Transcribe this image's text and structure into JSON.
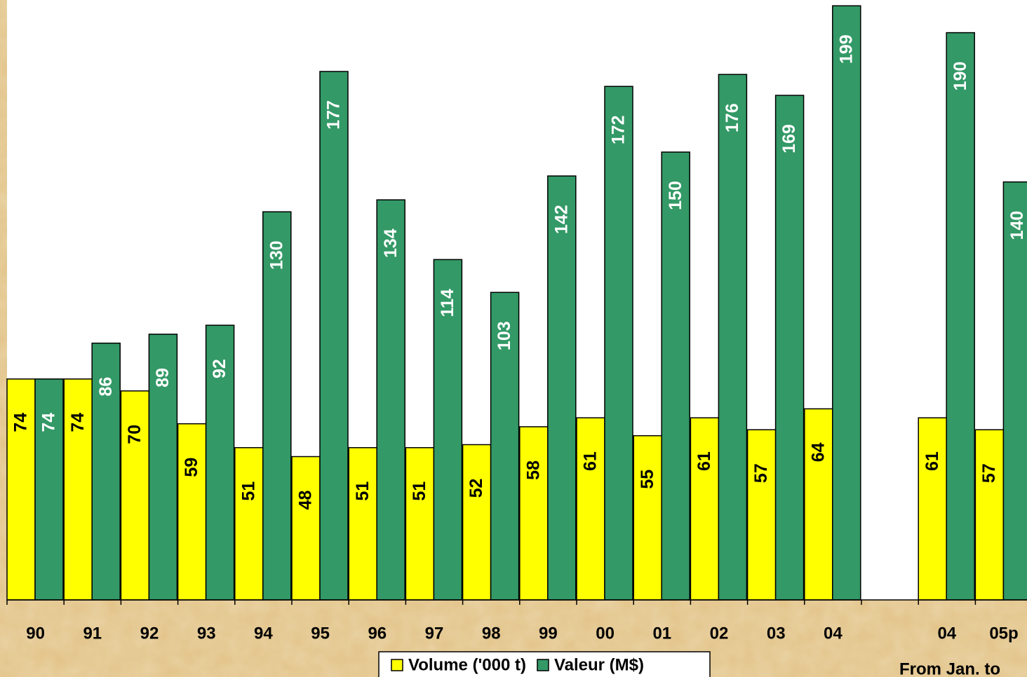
{
  "chart_data": {
    "type": "bar",
    "categories": [
      "90",
      "91",
      "92",
      "93",
      "94",
      "95",
      "96",
      "97",
      "98",
      "99",
      "00",
      "01",
      "02",
      "03",
      "04",
      null,
      "04",
      "05p"
    ],
    "series": [
      {
        "name": "Volume ('000 t)",
        "color": "#ffff00",
        "values": [
          74,
          74,
          70,
          59,
          51,
          48,
          51,
          51,
          52,
          58,
          61,
          55,
          61,
          57,
          64,
          null,
          61,
          57
        ]
      },
      {
        "name": "Valeur (M$)",
        "color": "#339966",
        "values": [
          74,
          86,
          89,
          92,
          130,
          177,
          134,
          114,
          103,
          142,
          172,
          150,
          176,
          169,
          199,
          null,
          190,
          140
        ]
      }
    ],
    "annotation": "From Jan. to"
  }
}
